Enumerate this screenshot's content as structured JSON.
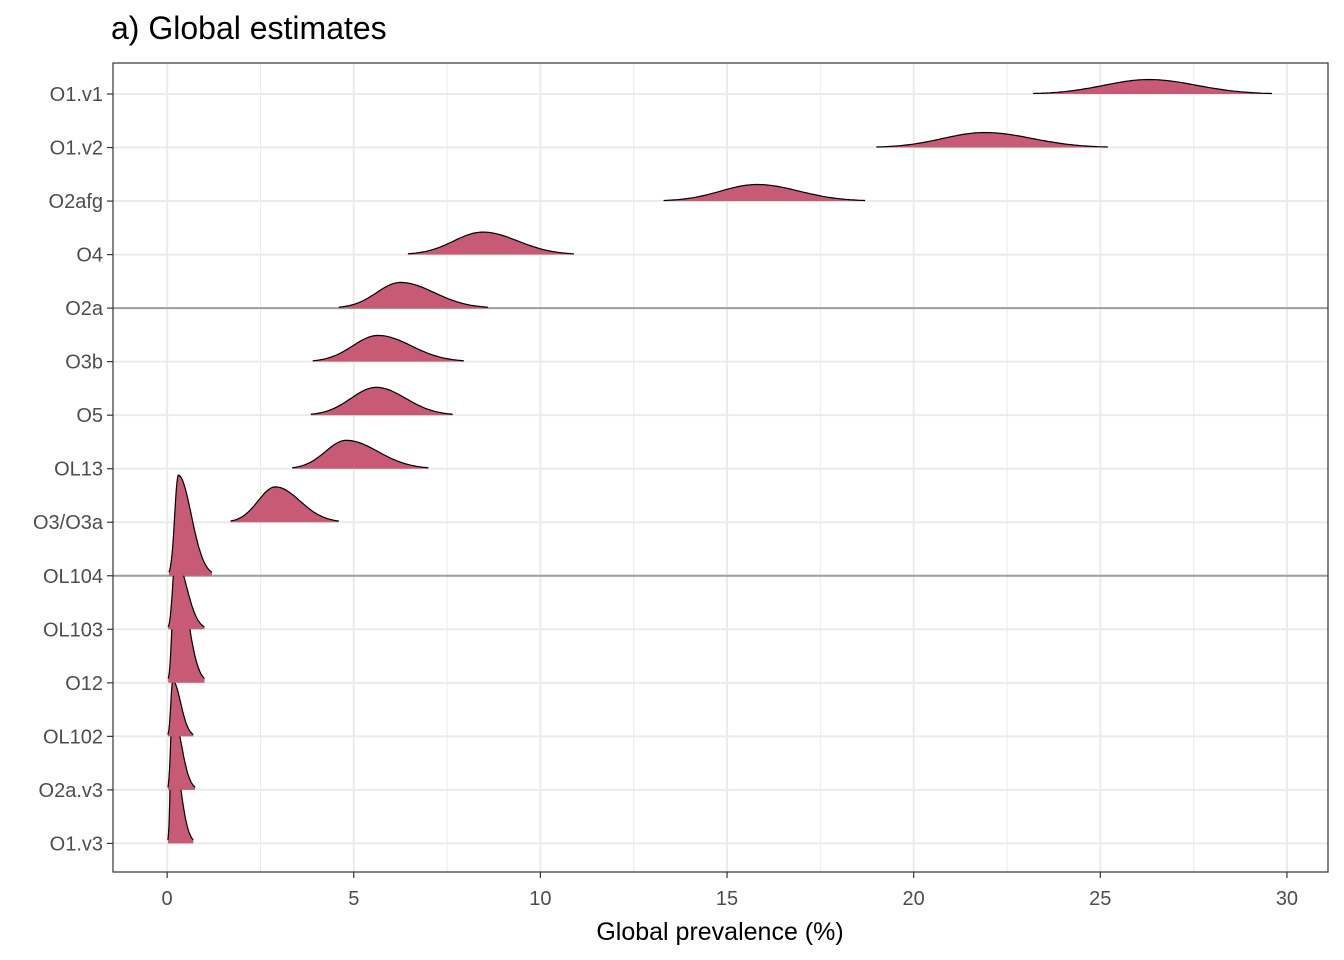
{
  "chart_data": {
    "type": "ridgeline",
    "title": "a) Global estimates",
    "xlabel": "Global prevalence (%)",
    "ylabel": "",
    "xlim": [
      -1.45,
      31.1
    ],
    "x_ticks": [
      "0",
      "5",
      "10",
      "15",
      "20",
      "25",
      "30"
    ],
    "x_tick_values": [
      0,
      5,
      10,
      15,
      20,
      25,
      30
    ],
    "grid": true,
    "fill_color": "#c75b75",
    "line_color": "#000000",
    "separator_color": "#9e9e9e",
    "separators_below": [
      "O2a",
      "OL104"
    ],
    "categories": [
      "O1.v1",
      "O1.v2",
      "O2afg",
      "O4",
      "O2a",
      "O3b",
      "O5",
      "OL13",
      "O3/O3a",
      "OL104",
      "OL103",
      "O12",
      "OL102",
      "O2a.v3",
      "O1.v3"
    ],
    "series": [
      {
        "name": "O1.v1",
        "min": 23.2,
        "peak": 26.3,
        "max": 29.6,
        "height": 0.27
      },
      {
        "name": "O1.v2",
        "min": 19.0,
        "peak": 21.9,
        "max": 25.2,
        "height": 0.28
      },
      {
        "name": "O2afg",
        "min": 13.3,
        "peak": 15.8,
        "max": 18.7,
        "height": 0.31
      },
      {
        "name": "O4",
        "min": 6.45,
        "peak": 8.45,
        "max": 10.9,
        "height": 0.42
      },
      {
        "name": "O2a",
        "min": 4.6,
        "peak": 6.25,
        "max": 8.6,
        "height": 0.48
      },
      {
        "name": "O3b",
        "min": 3.9,
        "peak": 5.65,
        "max": 7.95,
        "height": 0.49
      },
      {
        "name": "O5",
        "min": 3.85,
        "peak": 5.6,
        "max": 7.65,
        "height": 0.52
      },
      {
        "name": "OL13",
        "min": 3.35,
        "peak": 4.8,
        "max": 7.0,
        "height": 0.53
      },
      {
        "name": "O3/O3a",
        "min": 1.7,
        "peak": 2.9,
        "max": 4.6,
        "height": 0.66
      },
      {
        "name": "OL104",
        "min": 0.05,
        "peak": 0.3,
        "max": 1.2,
        "height": 1.88
      },
      {
        "name": "OL103",
        "min": 0.03,
        "peak": 0.22,
        "max": 1.0,
        "height": 1.32
      },
      {
        "name": "O12",
        "min": 0.03,
        "peak": 0.22,
        "max": 1.0,
        "height": 2.33
      },
      {
        "name": "OL102",
        "min": 0.02,
        "peak": 0.15,
        "max": 0.7,
        "height": 1.04
      },
      {
        "name": "O2a.v3",
        "min": 0.02,
        "peak": 0.14,
        "max": 0.75,
        "height": 1.45
      },
      {
        "name": "O1.v3",
        "min": 0.02,
        "peak": 0.12,
        "max": 0.7,
        "height": 1.88
      }
    ]
  }
}
